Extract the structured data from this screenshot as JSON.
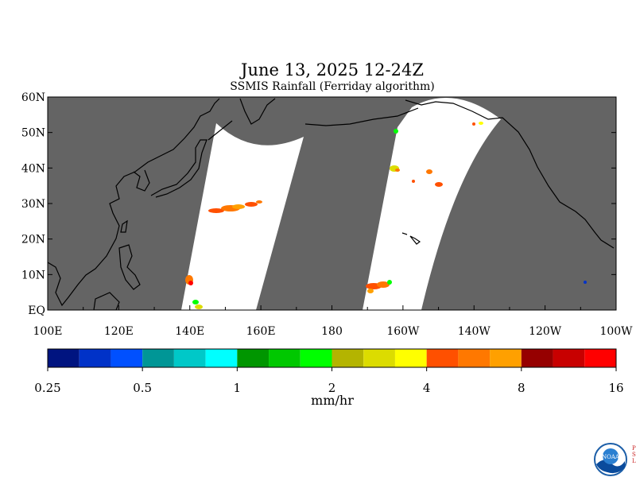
{
  "title": "June 13, 2025 12-24Z",
  "subtitle": "SSMIS Rainfall (Ferriday algorithm)",
  "map": {
    "lat_range": [
      0,
      60
    ],
    "lon_range": [
      100,
      260
    ],
    "lat_ticks": [
      {
        "lat": 60,
        "label": "60N"
      },
      {
        "lat": 50,
        "label": "50N"
      },
      {
        "lat": 40,
        "label": "40N"
      },
      {
        "lat": 30,
        "label": "30N"
      },
      {
        "lat": 20,
        "label": "20N"
      },
      {
        "lat": 10,
        "label": "10N"
      },
      {
        "lat": 0,
        "label": "EQ"
      }
    ],
    "lon_ticks": [
      {
        "lon": 100,
        "label": "100E"
      },
      {
        "lon": 120,
        "label": "120E"
      },
      {
        "lon": 140,
        "label": "140E"
      },
      {
        "lon": 160,
        "label": "160E"
      },
      {
        "lon": 180,
        "label": "180"
      },
      {
        "lon": 200,
        "label": "160W"
      },
      {
        "lon": 220,
        "label": "140W"
      },
      {
        "lon": 240,
        "label": "120W"
      },
      {
        "lon": 260,
        "label": "100W"
      }
    ],
    "colors": {
      "no_data": "#646464",
      "swath": "#ffffff",
      "coast": "#000000"
    }
  },
  "colorbar": {
    "colors": [
      "#001480",
      "#0032c8",
      "#0050ff",
      "#009696",
      "#00c8c8",
      "#00ffff",
      "#009600",
      "#00c800",
      "#00ff00",
      "#b4b400",
      "#dcdc00",
      "#ffff00",
      "#ff5000",
      "#ff7800",
      "#ffa000",
      "#960000",
      "#c80000",
      "#ff0000"
    ],
    "tick_labels": [
      {
        "value": "0.25",
        "index": 0
      },
      {
        "value": "0.5",
        "index": 3
      },
      {
        "value": "1",
        "index": 6
      },
      {
        "value": "2",
        "index": 9
      },
      {
        "value": "4",
        "index": 12
      },
      {
        "value": "8",
        "index": 15
      },
      {
        "value": "16",
        "index": 18
      }
    ],
    "units": "mm/hr"
  },
  "logo": {
    "text": "NOAA",
    "side_text": "PSL",
    "icon": "noaa-logo-icon"
  }
}
